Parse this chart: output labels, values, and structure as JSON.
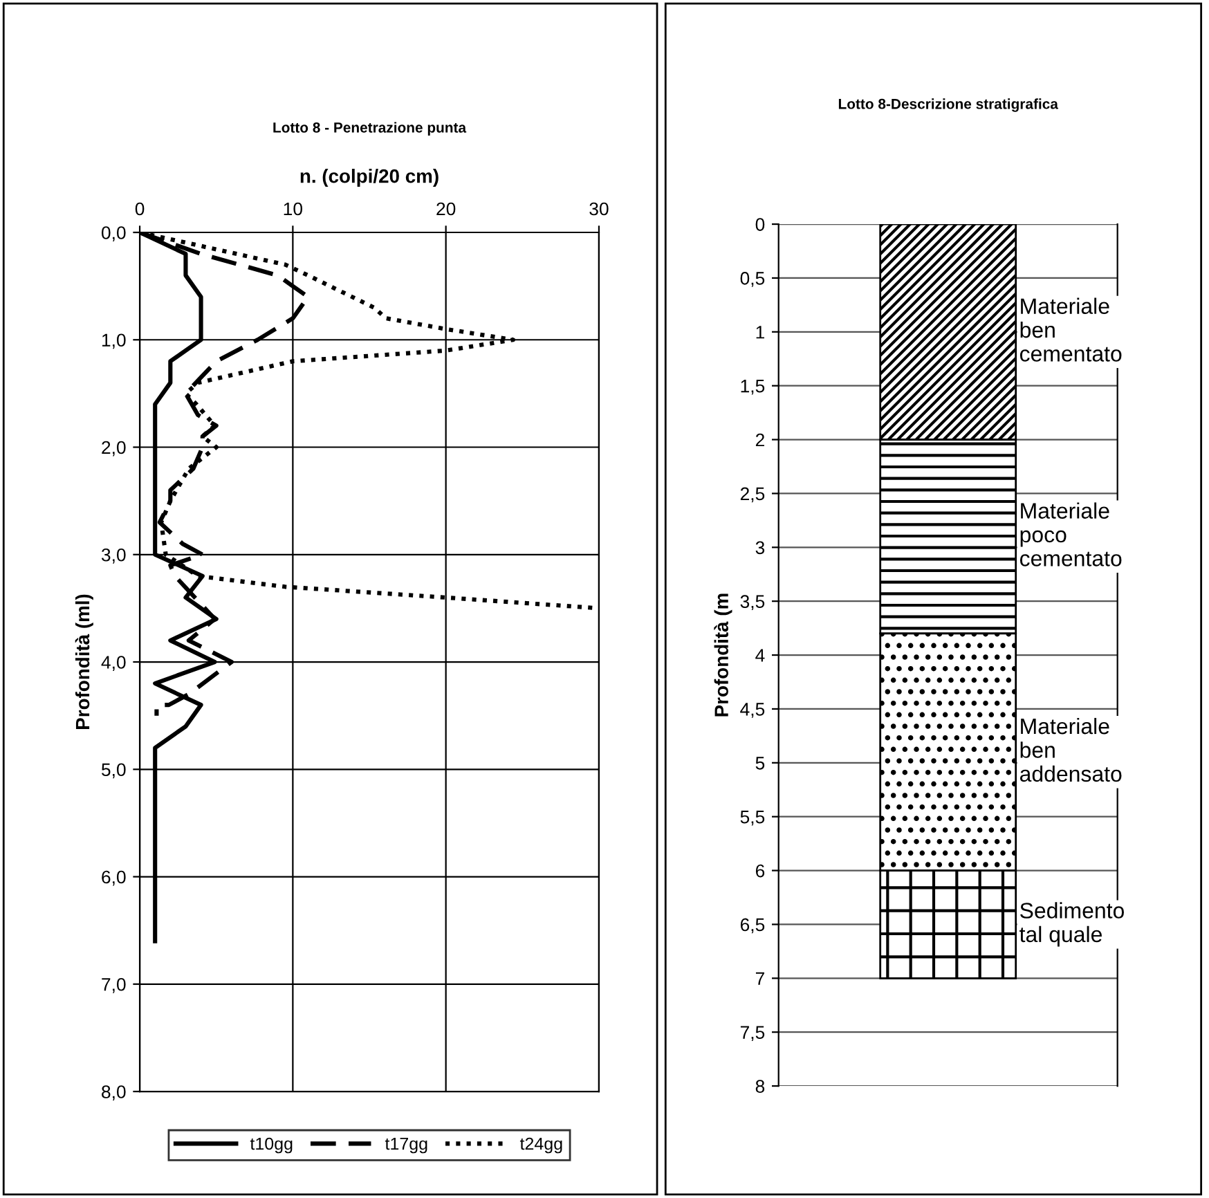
{
  "chart_data": [
    {
      "type": "line",
      "title": "Lotto 8 - Penetrazione punta",
      "xlabel": "n. (colpi/20 cm)",
      "ylabel": "Profondità (ml)",
      "xlim": [
        0,
        30
      ],
      "xticks": [
        0,
        10,
        20,
        30
      ],
      "ylim": [
        8,
        0
      ],
      "yticks": [
        {
          "value": 0,
          "label": "0,0"
        },
        {
          "value": 1,
          "label": "1,0"
        },
        {
          "value": 2,
          "label": "2,0"
        },
        {
          "value": 3,
          "label": "3,0"
        },
        {
          "value": 4,
          "label": "4,0"
        },
        {
          "value": 5,
          "label": "5,0"
        },
        {
          "value": 6,
          "label": "6,0"
        },
        {
          "value": 7,
          "label": "7,0"
        },
        {
          "value": 8,
          "label": "8,0"
        }
      ],
      "grid": true,
      "legend": "bottom",
      "series": [
        {
          "name": "t10gg",
          "color": "#000000",
          "line_style": "solid",
          "x": [
            0,
            3,
            3,
            4,
            4,
            2,
            2,
            1,
            1,
            4.1,
            3,
            5,
            2,
            4.9,
            1,
            4,
            3,
            1,
            1
          ],
          "values": [
            0,
            0.2,
            0.4,
            0.6,
            1.0,
            1.2,
            1.4,
            1.6,
            3.0,
            3.2,
            3.4,
            3.6,
            3.8,
            4.0,
            4.2,
            4.4,
            4.6,
            4.8,
            6.6
          ]
        },
        {
          "name": "t17gg",
          "color": "#000000",
          "line_style": "dashed",
          "x": [
            0,
            4,
            9,
            10,
            11,
            10,
            7.7,
            5,
            3,
            3.8,
            5,
            4.1,
            4.1,
            3.5,
            2,
            2,
            1.3,
            2.8,
            4.1,
            2,
            2.3,
            4.9,
            3.2,
            6,
            3.2,
            1.9,
            1.1,
            1.1
          ],
          "values": [
            0,
            0.2,
            0.4,
            0.5,
            0.6,
            0.8,
            1.0,
            1.2,
            1.5,
            1.7,
            1.8,
            1.9,
            2.0,
            2.2,
            2.4,
            2.5,
            2.7,
            2.9,
            3.0,
            3.1,
            3.2,
            3.6,
            3.8,
            4.0,
            4.3,
            4.4,
            4.4,
            4.5
          ]
        },
        {
          "name": "t24gg",
          "color": "#000000",
          "line_style": "dotted",
          "x": [
            0,
            9.5,
            11,
            15.3,
            16.1,
            20,
            24.4,
            20,
            10,
            3.8,
            3,
            3.7,
            4.9,
            4.1,
            5,
            3.2,
            2,
            1.4,
            1.7,
            3.8,
            9.5,
            20,
            30
          ],
          "values": [
            0,
            0.3,
            0.4,
            0.7,
            0.8,
            0.9,
            1.0,
            1.1,
            1.2,
            1.4,
            1.5,
            1.6,
            1.8,
            1.9,
            2.0,
            2.2,
            2.5,
            2.7,
            3.0,
            3.2,
            3.3,
            3.4,
            3.5
          ]
        }
      ]
    },
    {
      "type": "bar",
      "title": "Lotto 8-Descrizione stratigrafica",
      "ylabel": "Profondità (m",
      "stacked": true,
      "categories": [
        null
      ],
      "ylim": [
        8,
        0
      ],
      "grid": "y",
      "yticks": [
        0,
        {
          "value": 0.5,
          "label": "0,5"
        },
        1,
        {
          "value": 1.5,
          "label": "1,5"
        },
        2,
        {
          "value": 2.5,
          "label": "2,5"
        },
        3,
        {
          "value": 3.5,
          "label": "3,5"
        },
        4,
        {
          "value": 4.5,
          "label": "4,5"
        },
        5,
        {
          "value": 5.5,
          "label": "5,5"
        },
        6,
        {
          "value": 6.5,
          "label": "6,5"
        },
        7,
        {
          "value": 7.5,
          "label": "7,5"
        },
        8
      ],
      "series": [
        {
          "name": "Materiale\nben\ncementato",
          "color": "#000000",
          "values": [
            2
          ]
        },
        {
          "name": "Materiale\npoco\ncementato",
          "color": "#000000",
          "values": [
            1.8
          ]
        },
        {
          "name": "Materiale\nben\naddensato",
          "color": "#000000",
          "values": [
            2.2
          ]
        },
        {
          "name": "Sedimento\ntal quale",
          "color": "#000000",
          "values": [
            1
          ]
        }
      ]
    }
  ]
}
